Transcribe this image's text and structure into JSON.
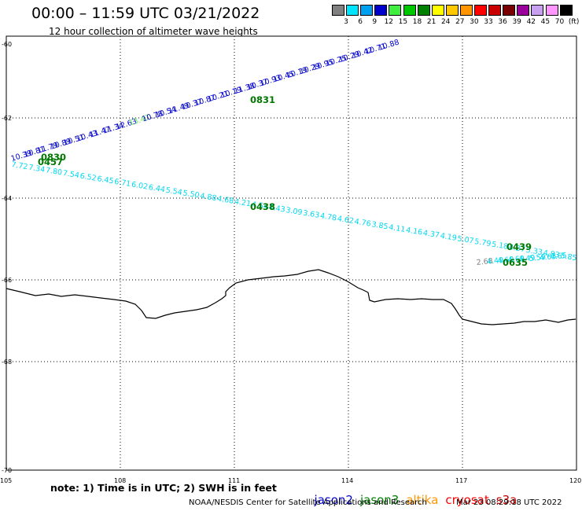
{
  "header": {
    "title": "00:00 – 11:59 UTC 03/21/2022",
    "subtitle": "12 hour collection of altimeter wave heights"
  },
  "colorbar": {
    "colors": [
      "#808080",
      "#00e5ff",
      "#00a0f0",
      "#0000cc",
      "#40ee40",
      "#00c800",
      "#008000",
      "#ffff00",
      "#ffc800",
      "#ff9600",
      "#ff0000",
      "#c80000",
      "#780000",
      "#9a009a",
      "#c8a0f0",
      "#ff96ff",
      "#000000"
    ],
    "labels": [
      "3",
      "6",
      "9",
      "12",
      "15",
      "18",
      "21",
      "24",
      "27",
      "30",
      "33",
      "36",
      "39",
      "42",
      "45",
      "70"
    ],
    "unit": "(ft)"
  },
  "axes": {
    "lat_labels": [
      "-60",
      "-62",
      "-64",
      "-66",
      "-68",
      "-70"
    ],
    "lon_labels": [
      "105",
      "108",
      "111",
      "114",
      "117",
      "120"
    ]
  },
  "tracks": [
    {
      "satellite": "jason2",
      "values": [
        "10.39",
        "10.81",
        "11.79",
        "10.89",
        "10.51",
        "10.43",
        "11.47",
        "11.34",
        "12.63",
        "13.47",
        "10.78",
        "10.54",
        "11.49",
        "10.37",
        "10.87",
        "10.21",
        "10.19",
        "11.38",
        "10.37",
        "10.93",
        "10.45",
        "10.19",
        "10.29",
        "10.95",
        "10.25",
        "10.29",
        "10.42",
        "10.71",
        "10.88"
      ]
    },
    {
      "satellite": "jason3",
      "values": [
        "7.72",
        "7.34",
        "7.80",
        "7.54",
        "6.52",
        "6.45",
        "6.71",
        "6.02",
        "6.44",
        "5.54",
        "5.50",
        "4.88",
        "4.68",
        "4.21",
        "4.54",
        "4.43",
        "3.09",
        "3.63",
        "4.78",
        "4.62",
        "4.76",
        "3.85",
        "4.11",
        "4.16",
        "4.37",
        "4.19",
        "5.07",
        "5.79",
        "5.18",
        "4.37",
        "5.33",
        "4.83",
        "5.85"
      ]
    },
    {
      "satellite": "jason3",
      "values": [
        "2.68",
        "4.49",
        "4.69",
        "4.69",
        "4.49",
        "5.59",
        "4.63",
        "4.65"
      ]
    }
  ],
  "time_labels": [
    "0830",
    "0457",
    "0831",
    "0438",
    "0439",
    "0635"
  ],
  "note": "note: 1) Time is in UTC; 2) SWH is in feet",
  "satellites": [
    {
      "name": "jason2",
      "color": "#0000cc"
    },
    {
      "name": "jason3",
      "color": "#008000"
    },
    {
      "name": "altika",
      "color": "#ff9600"
    },
    {
      "name": "cryosat",
      "color": "#ff0000"
    },
    {
      "name": "s3a",
      "color": "#c80000"
    }
  ],
  "footer": {
    "left": "NOAA/NESDIS Center for Satellite Applications and Research",
    "right": "Mar 23 08:29:18 UTC 2022"
  }
}
